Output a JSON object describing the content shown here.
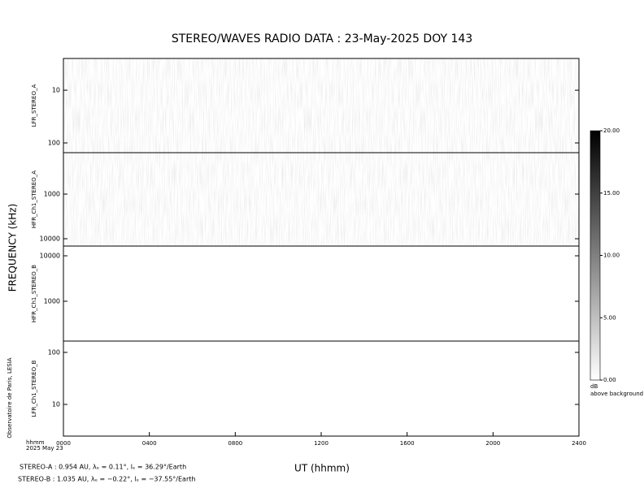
{
  "title": "STEREO/WAVES  RADIO  DATA : 23-May-2025  DOY 143",
  "y_label": "FREQUENCY (kHz)",
  "x_label": "UT (hhmm)",
  "x_unit": "hhmm",
  "date": "2025 May 23",
  "xlim": [
    0,
    2400
  ],
  "xticks": [
    {
      "value": 0,
      "label": "0000"
    },
    {
      "value": 400,
      "label": "0400"
    },
    {
      "value": 800,
      "label": "0800"
    },
    {
      "value": 1200,
      "label": "1200"
    },
    {
      "value": 1600,
      "label": "1600"
    },
    {
      "value": 2000,
      "label": "2000"
    },
    {
      "value": 2400,
      "label": "2400"
    }
  ],
  "panels": [
    {
      "label": "LFR_STEREO_A",
      "log": true,
      "ylim": [
        2.5,
        153
      ],
      "yticks": [
        10,
        100
      ],
      "shade": "a"
    },
    {
      "label": "HFR_Ch1_STEREO_A",
      "log": true,
      "ylim": [
        118,
        14590
      ],
      "yticks": [
        1000,
        10000
      ],
      "shade": "a"
    },
    {
      "label": "HFR_Ch1_STEREO_B",
      "log": true,
      "ylim": [
        16380,
        133
      ],
      "yticks": [
        10000,
        1000
      ],
      "shade": "b"
    },
    {
      "label": "LFR_Ch1_STEREO_B",
      "log": true,
      "ylim": [
        165,
        2.46
      ],
      "yticks": [
        100,
        10
      ],
      "shade": "b"
    }
  ],
  "colorbar": {
    "lim": [
      0,
      20
    ],
    "ticks": [
      {
        "value": 20,
        "label": "20.00"
      },
      {
        "value": 15,
        "label": "15.00"
      },
      {
        "value": 10,
        "label": "10.00"
      },
      {
        "value": 5,
        "label": "5.00"
      },
      {
        "value": 0,
        "label": "0.00"
      }
    ],
    "unit": "dB",
    "note": "above background"
  },
  "credit": "Observatoire de Paris, LESIA",
  "footer": [
    "STEREO-A : 0.954 AU, λₑ = 0.11°, lₑ = 36.29°/Earth",
    "STEREO-B : 1.035 AU, λₑ = −0.22°, lₑ = −37.55°/Earth"
  ]
}
